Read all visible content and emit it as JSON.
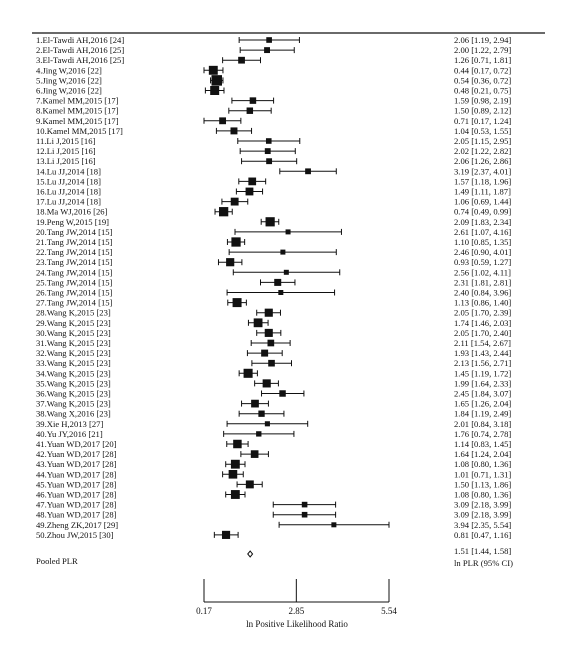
{
  "chart_data": {
    "type": "forest",
    "xlabel": "ln Positive Likelihood Ratio",
    "x_ticks": [
      0.17,
      2.85,
      5.54
    ],
    "x_tick_labels": [
      "0.17",
      "2.85",
      "5.54"
    ],
    "xlim": [
      -0.5,
      6.2
    ],
    "effect_header": "ln PLR (95% CI)",
    "studies": [
      {
        "label": "1.El-Tawdi AH,2016 [24]",
        "est": 2.06,
        "lo": 1.19,
        "hi": 2.94,
        "ci_text": "2.06 [1.19, 2.94]"
      },
      {
        "label": "2.El-Tawdi AH,2016 [25]",
        "est": 2.0,
        "lo": 1.22,
        "hi": 2.79,
        "ci_text": "2.00 [1.22, 2.79]"
      },
      {
        "label": "3.El-Tawdi AH,2016 [25]",
        "est": 1.26,
        "lo": 0.71,
        "hi": 1.81,
        "ci_text": "1.26 [0.71, 1.81]"
      },
      {
        "label": "4.Jing W,2016 [22]",
        "est": 0.44,
        "lo": 0.17,
        "hi": 0.72,
        "ci_text": "0.44 [0.17, 0.72]"
      },
      {
        "label": "5.Jing W,2016 [22]",
        "est": 0.54,
        "lo": 0.36,
        "hi": 0.72,
        "ci_text": "0.54 [0.36, 0.72]"
      },
      {
        "label": "6.Jing W,2016 [22]",
        "est": 0.48,
        "lo": 0.21,
        "hi": 0.75,
        "ci_text": "0.48 [0.21, 0.75]"
      },
      {
        "label": "7.Kamel MM,2015 [17]",
        "est": 1.59,
        "lo": 0.98,
        "hi": 2.19,
        "ci_text": "1.59 [0.98, 2.19]"
      },
      {
        "label": "8.Kamel MM,2015 [17]",
        "est": 1.5,
        "lo": 0.89,
        "hi": 2.12,
        "ci_text": "1.50 [0.89, 2.12]"
      },
      {
        "label": "9.Kamel MM,2015 [17]",
        "est": 0.71,
        "lo": 0.17,
        "hi": 1.24,
        "ci_text": "0.71 [0.17, 1.24]"
      },
      {
        "label": "10.Kamel MM,2015 [17]",
        "est": 1.04,
        "lo": 0.53,
        "hi": 1.55,
        "ci_text": "1.04 [0.53, 1.55]"
      },
      {
        "label": "11.Li J,2015 [16]",
        "est": 2.05,
        "lo": 1.15,
        "hi": 2.95,
        "ci_text": "2.05 [1.15, 2.95]"
      },
      {
        "label": "12.Li J,2015 [16]",
        "est": 2.02,
        "lo": 1.22,
        "hi": 2.82,
        "ci_text": "2.02 [1.22, 2.82]"
      },
      {
        "label": "13.Li J,2015 [16]",
        "est": 2.06,
        "lo": 1.26,
        "hi": 2.86,
        "ci_text": "2.06 [1.26, 2.86]"
      },
      {
        "label": "14.Lu JJ,2014 [18]",
        "est": 3.19,
        "lo": 2.37,
        "hi": 4.01,
        "ci_text": "3.19 [2.37, 4.01]"
      },
      {
        "label": "15.Lu JJ,2014 [18]",
        "est": 1.57,
        "lo": 1.18,
        "hi": 1.96,
        "ci_text": "1.57 [1.18, 1.96]"
      },
      {
        "label": "16.Lu JJ,2014 [18]",
        "est": 1.49,
        "lo": 1.11,
        "hi": 1.87,
        "ci_text": "1.49 [1.11, 1.87]"
      },
      {
        "label": "17.Lu JJ,2014 [18]",
        "est": 1.06,
        "lo": 0.69,
        "hi": 1.44,
        "ci_text": "1.06 [0.69, 1.44]"
      },
      {
        "label": "18.Ma WJ,2016 [26]",
        "est": 0.74,
        "lo": 0.49,
        "hi": 0.99,
        "ci_text": "0.74 [0.49, 0.99]"
      },
      {
        "label": "19.Peng W,2015 [19]",
        "est": 2.09,
        "lo": 1.83,
        "hi": 2.34,
        "ci_text": "2.09 [1.83, 2.34]"
      },
      {
        "label": "20.Tang JW,2014 [15]",
        "est": 2.61,
        "lo": 1.07,
        "hi": 4.16,
        "ci_text": "2.61 [1.07, 4.16]"
      },
      {
        "label": "21.Tang JW,2014 [15]",
        "est": 1.1,
        "lo": 0.85,
        "hi": 1.35,
        "ci_text": "1.10 [0.85, 1.35]"
      },
      {
        "label": "22.Tang JW,2014 [15]",
        "est": 2.46,
        "lo": 0.9,
        "hi": 4.01,
        "ci_text": "2.46 [0.90, 4.01]"
      },
      {
        "label": "23.Tang JW,2014 [15]",
        "est": 0.93,
        "lo": 0.59,
        "hi": 1.27,
        "ci_text": "0.93 [0.59, 1.27]"
      },
      {
        "label": "24.Tang JW,2014 [15]",
        "est": 2.56,
        "lo": 1.02,
        "hi": 4.11,
        "ci_text": "2.56 [1.02, 4.11]"
      },
      {
        "label": "25.Tang JW,2014 [15]",
        "est": 2.31,
        "lo": 1.81,
        "hi": 2.81,
        "ci_text": "2.31 [1.81, 2.81]"
      },
      {
        "label": "26.Tang JW,2014 [15]",
        "est": 2.4,
        "lo": 0.84,
        "hi": 3.96,
        "ci_text": "2.40 [0.84, 3.96]"
      },
      {
        "label": "27.Tang JW,2014 [15]",
        "est": 1.13,
        "lo": 0.86,
        "hi": 1.4,
        "ci_text": "1.13 [0.86, 1.40]"
      },
      {
        "label": "28.Wang K,2015 [23]",
        "est": 2.05,
        "lo": 1.7,
        "hi": 2.39,
        "ci_text": "2.05 [1.70, 2.39]"
      },
      {
        "label": "29.Wang K,2015 [23]",
        "est": 1.74,
        "lo": 1.46,
        "hi": 2.03,
        "ci_text": "1.74 [1.46, 2.03]"
      },
      {
        "label": "30.Wang K,2015 [23]",
        "est": 2.05,
        "lo": 1.7,
        "hi": 2.4,
        "ci_text": "2.05 [1.70, 2.40]"
      },
      {
        "label": "31.Wang K,2015 [23]",
        "est": 2.11,
        "lo": 1.54,
        "hi": 2.67,
        "ci_text": "2.11 [1.54, 2.67]"
      },
      {
        "label": "32.Wang K,2015 [23]",
        "est": 1.93,
        "lo": 1.43,
        "hi": 2.44,
        "ci_text": "1.93 [1.43, 2.44]"
      },
      {
        "label": "33.Wang K,2015 [23]",
        "est": 2.13,
        "lo": 1.56,
        "hi": 2.71,
        "ci_text": "2.13 [1.56, 2.71]"
      },
      {
        "label": "34.Wang K,2015 [23]",
        "est": 1.45,
        "lo": 1.19,
        "hi": 1.72,
        "ci_text": "1.45 [1.19, 1.72]"
      },
      {
        "label": "35.Wang K,2015 [23]",
        "est": 1.99,
        "lo": 1.64,
        "hi": 2.33,
        "ci_text": "1.99 [1.64, 2.33]"
      },
      {
        "label": "36.Wang K,2015 [23]",
        "est": 2.45,
        "lo": 1.84,
        "hi": 3.07,
        "ci_text": "2.45 [1.84, 3.07]"
      },
      {
        "label": "37.Wang K,2015 [23]",
        "est": 1.65,
        "lo": 1.26,
        "hi": 2.04,
        "ci_text": "1.65 [1.26, 2.04]"
      },
      {
        "label": "38.Wang X,2016 [23]",
        "est": 1.84,
        "lo": 1.19,
        "hi": 2.49,
        "ci_text": "1.84 [1.19, 2.49]"
      },
      {
        "label": "39.Xie H,2013 [27]",
        "est": 2.01,
        "lo": 0.84,
        "hi": 3.18,
        "ci_text": "2.01 [0.84, 3.18]"
      },
      {
        "label": "40.Yu JY,2016 [21]",
        "est": 1.76,
        "lo": 0.74,
        "hi": 2.78,
        "ci_text": "1.76 [0.74, 2.78]"
      },
      {
        "label": "41.Yuan WD,2017 [20]",
        "est": 1.14,
        "lo": 0.83,
        "hi": 1.45,
        "ci_text": "1.14 [0.83, 1.45]"
      },
      {
        "label": "42.Yuan WD,2017 [28]",
        "est": 1.64,
        "lo": 1.24,
        "hi": 2.04,
        "ci_text": "1.64 [1.24, 2.04]"
      },
      {
        "label": "43.Yuan WD,2017 [28]",
        "est": 1.08,
        "lo": 0.8,
        "hi": 1.36,
        "ci_text": "1.08 [0.80, 1.36]"
      },
      {
        "label": "44.Yuan WD,2017 [28]",
        "est": 1.01,
        "lo": 0.71,
        "hi": 1.31,
        "ci_text": "1.01 [0.71, 1.31]"
      },
      {
        "label": "45.Yuan WD,2017 [28]",
        "est": 1.5,
        "lo": 1.13,
        "hi": 1.86,
        "ci_text": "1.50 [1.13, 1.86]"
      },
      {
        "label": "46.Yuan WD,2017 [28]",
        "est": 1.08,
        "lo": 0.8,
        "hi": 1.36,
        "ci_text": "1.08 [0.80, 1.36]"
      },
      {
        "label": "47.Yuan WD,2017 [28]",
        "est": 3.09,
        "lo": 2.18,
        "hi": 3.99,
        "ci_text": "3.09 [2.18, 3.99]"
      },
      {
        "label": "48.Yuan WD,2017 [28]",
        "est": 3.09,
        "lo": 2.18,
        "hi": 3.99,
        "ci_text": "3.09 [2.18, 3.99]"
      },
      {
        "label": "49.Zheng ZK,2017 [29]",
        "est": 3.94,
        "lo": 2.35,
        "hi": 5.54,
        "ci_text": "3.94 [2.35, 5.54]"
      },
      {
        "label": "50.Zhou JW,2015 [30]",
        "est": 0.81,
        "lo": 0.47,
        "hi": 1.16,
        "ci_text": "0.81 [0.47, 1.16]"
      }
    ],
    "pooled": {
      "label": "Pooled PLR",
      "est": 1.51,
      "lo": 1.44,
      "hi": 1.58,
      "ci_text": "1.51 [1.44, 1.58]"
    }
  }
}
